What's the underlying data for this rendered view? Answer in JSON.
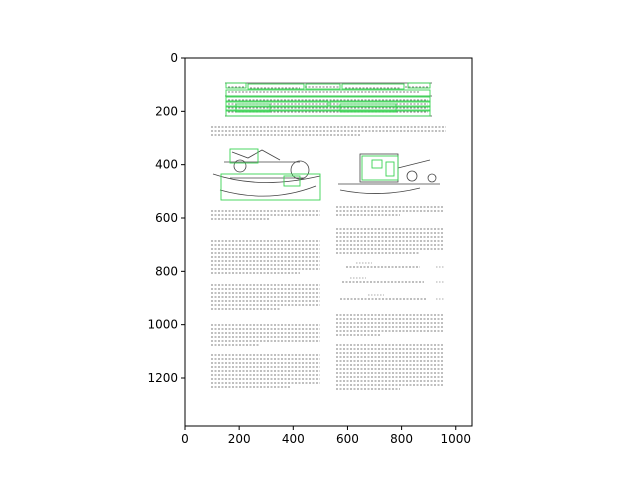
{
  "axes": {
    "x_ticks": [
      "0",
      "200",
      "400",
      "600",
      "800",
      "1000"
    ],
    "y_ticks": [
      "0",
      "200",
      "400",
      "600",
      "800",
      "1000",
      "1200"
    ],
    "x_range": [
      0,
      1060
    ],
    "y_range": [
      1380,
      0
    ],
    "y_inverted": true,
    "grid": false
  },
  "image_content": {
    "kind": "scanned document page with green annotation boxes",
    "annotation_color": "#39d353"
  }
}
